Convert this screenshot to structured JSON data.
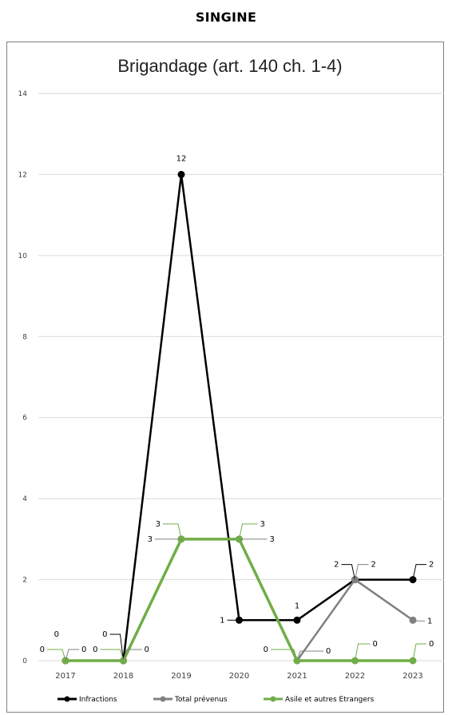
{
  "page": {
    "heading": "SINGINE"
  },
  "chart_data": {
    "type": "line",
    "title": "Brigandage (art. 140 ch. 1-4)",
    "xlabel": "",
    "ylabel": "",
    "categories": [
      "2017",
      "2018",
      "2019",
      "2020",
      "2021",
      "2022",
      "2023"
    ],
    "ylim": [
      0,
      14
    ],
    "yticks": [
      0,
      2,
      4,
      6,
      8,
      10,
      12,
      14
    ],
    "grid": true,
    "legend_position": "bottom",
    "series": [
      {
        "name": "Infractions",
        "color": "#000000",
        "values": [
          0,
          0,
          12,
          1,
          1,
          2,
          2
        ]
      },
      {
        "name": "Total prévenus",
        "color": "#808080",
        "values": [
          0,
          0,
          3,
          3,
          0,
          2,
          1
        ]
      },
      {
        "name": "Asile et autres Etrangers",
        "color": "#70ad47",
        "values": [
          0,
          0,
          3,
          3,
          0,
          0,
          0
        ]
      }
    ]
  }
}
